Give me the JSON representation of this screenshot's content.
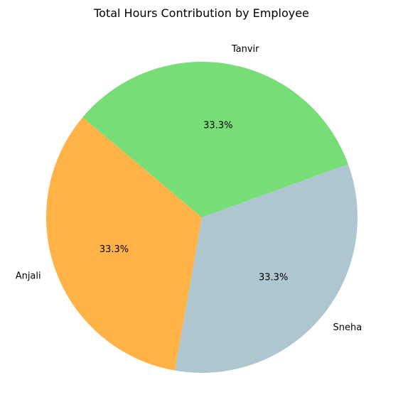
{
  "chart_data": {
    "type": "pie",
    "title": "Total Hours Contribution by Employee",
    "categories": [
      "Anjali",
      "Sneha",
      "Tanvir"
    ],
    "values": [
      33.3,
      33.3,
      33.3
    ],
    "percent_labels": [
      "33.3%",
      "33.3%",
      "33.3%"
    ],
    "colors": [
      "#ffb347",
      "#aec6cf",
      "#77dd77"
    ],
    "legend": false
  }
}
